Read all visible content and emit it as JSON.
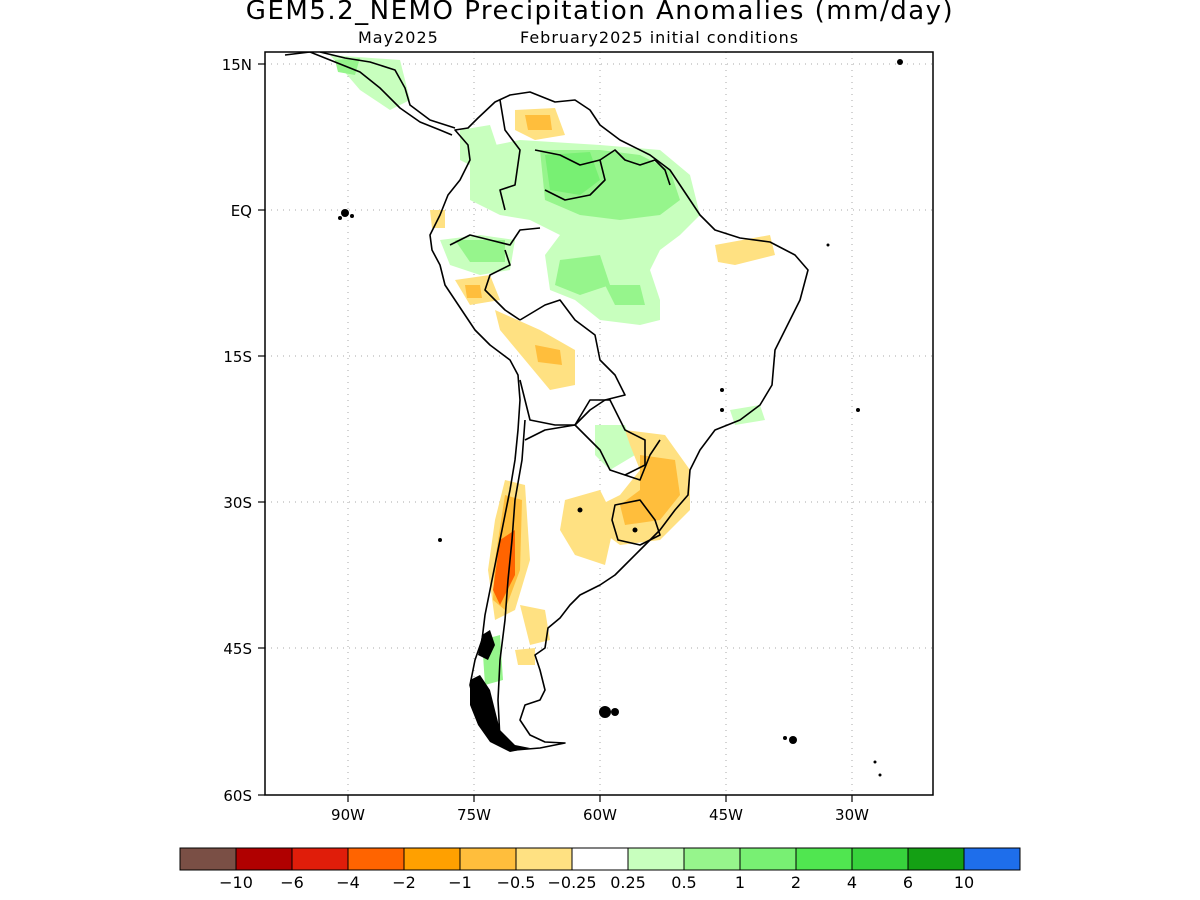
{
  "title": "GEM5.2_NEMO Precipitation Anomalies (mm/day)",
  "subtitle_left": "May2025",
  "subtitle_right": "February2025 initial conditions",
  "lat_labels": [
    "15N",
    "EQ",
    "15S",
    "30S",
    "45S",
    "60S"
  ],
  "lon_labels": [
    "90W",
    "75W",
    "60W",
    "45W",
    "30W"
  ],
  "colorbar": {
    "labels": [
      "-10",
      "-6",
      "-4",
      "-2",
      "-1",
      "-0.5",
      "-0.25",
      "0.25",
      "0.5",
      "1",
      "2",
      "4",
      "6",
      "10"
    ],
    "colors": [
      "#7a4f45",
      "#b00000",
      "#e01d0a",
      "#ff6400",
      "#ffa000",
      "#ffbe3c",
      "#ffe182",
      "#ffffff",
      "#c8ffbe",
      "#96f58c",
      "#78f073",
      "#50e650",
      "#37d23c",
      "#14a014",
      "#1e6eeb"
    ]
  },
  "colors": {
    "frame": "#000000",
    "grid": "#aaaaaa",
    "coast": "#000000"
  }
}
